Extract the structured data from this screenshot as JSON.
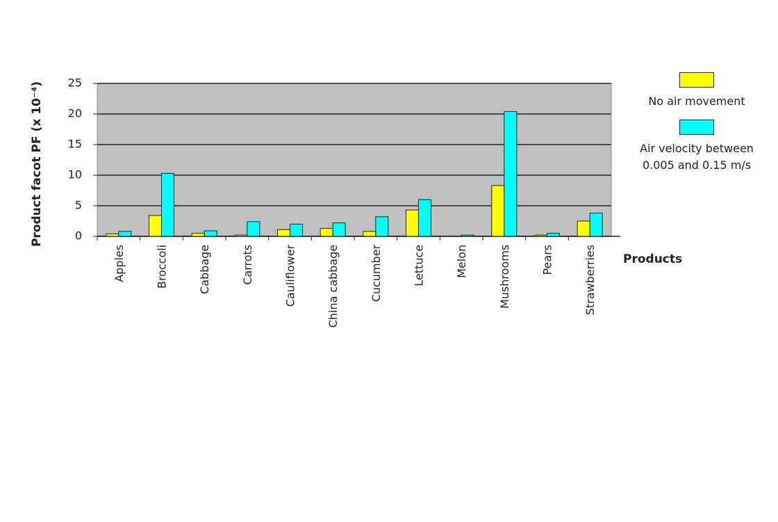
{
  "chart_data": {
    "type": "bar",
    "y_label": "Product facot PF (x 10⁻⁴)",
    "x_label": "Products",
    "categories": [
      "Apples",
      "Broccoli",
      "Cabbage",
      "Carrots",
      "Cauliflower",
      "China cabbage",
      "Cucumber",
      "Lettuce",
      "Melon",
      "Mushrooms",
      "Pears",
      "Strawberries"
    ],
    "series": [
      {
        "name": "No air movement",
        "color": "#ffff00",
        "values": [
          0.4,
          3.4,
          0.5,
          0.2,
          1.1,
          1.3,
          0.8,
          4.3,
          0,
          8.3,
          0.2,
          2.5
        ]
      },
      {
        "name": "Air velocity between 0.005 and 0.15 m/s",
        "color": "#00ffff",
        "values": [
          0.8,
          10.3,
          0.9,
          2.4,
          2.0,
          2.2,
          3.2,
          6.0,
          0.2,
          20.4,
          0.5,
          3.8
        ]
      }
    ],
    "ylim": [
      0,
      25
    ],
    "yticks": [
      0,
      5,
      10,
      15,
      20,
      25
    ],
    "grid": true
  }
}
